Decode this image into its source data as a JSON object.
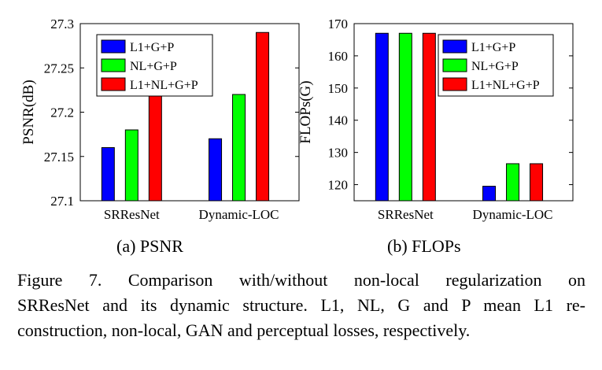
{
  "chart_data": [
    {
      "type": "bar",
      "subcaption": "(a) PSNR",
      "ylabel": "PSNR(dB)",
      "ylim": [
        27.1,
        27.3
      ],
      "yticks": [
        "27.1",
        "27.15",
        "27.2",
        "27.25",
        "27.3"
      ],
      "categories": [
        "SRResNet",
        "Dynamic-LOC"
      ],
      "series": [
        {
          "name": "L1+G+P",
          "color": "#0000ff",
          "values": [
            27.16,
            27.17
          ]
        },
        {
          "name": "NL+G+P",
          "color": "#00ff00",
          "values": [
            27.18,
            27.22
          ]
        },
        {
          "name": "L1+NL+G+P",
          "color": "#ff0000",
          "values": [
            27.22,
            27.29
          ]
        }
      ],
      "legend": "top-left"
    },
    {
      "type": "bar",
      "subcaption": "(b) FLOPs",
      "ylabel": "FLOPs(G)",
      "ylim": [
        115,
        170
      ],
      "yticks": [
        "120",
        "130",
        "140",
        "150",
        "160",
        "170"
      ],
      "categories": [
        "SRResNet",
        "Dynamic-LOC"
      ],
      "series": [
        {
          "name": "L1+G+P",
          "color": "#0000ff",
          "values": [
            167,
            119.5
          ]
        },
        {
          "name": "NL+G+P",
          "color": "#00ff00",
          "values": [
            167,
            126.5
          ]
        },
        {
          "name": "L1+NL+G+P",
          "color": "#ff0000",
          "values": [
            167,
            126.5
          ]
        }
      ],
      "legend": "top-right"
    }
  ],
  "caption": {
    "lines": [
      "Figure 7.  Comparison with/without non-local regularization on",
      "SRResNet and its dynamic structure. L1, NL, G and P mean L1 re-",
      "construction, non-local, GAN and perceptual losses, respectively."
    ]
  }
}
